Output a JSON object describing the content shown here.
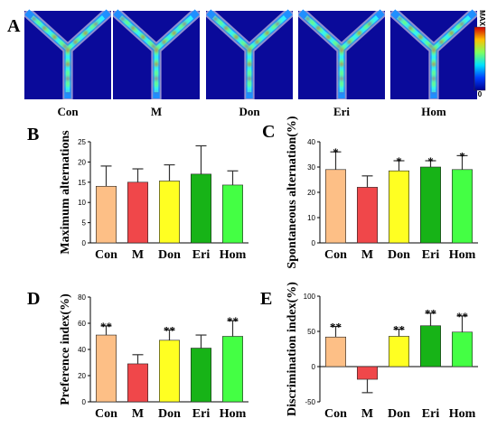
{
  "panel_labels": [
    "A",
    "B",
    "C",
    "D",
    "E"
  ],
  "heatmaps": {
    "labels": [
      "Con",
      "M",
      "Don",
      "Eri",
      "Hom"
    ],
    "colorbar_max": "MAX",
    "colorbar_min": "0"
  },
  "colors": {
    "Con": "#fdbf86",
    "M": "#f0474a",
    "Don": "#ffff22",
    "Eri": "#17b317",
    "Hom": "#44ff44",
    "heatmap_bg": "#0a0a9a"
  },
  "chart_data": [
    {
      "panel": "B",
      "type": "bar",
      "categories": [
        "Con",
        "M",
        "Don",
        "Eri",
        "Hom"
      ],
      "values": [
        14,
        15,
        15.3,
        17,
        14.3
      ],
      "errors": [
        5,
        3.3,
        4,
        7,
        3.5
      ],
      "significance": [
        "",
        "",
        "",
        "",
        ""
      ],
      "ylabel": "Maximum alternations",
      "ylim": [
        0,
        25
      ],
      "yticks": [
        0,
        5,
        10,
        15,
        20,
        25
      ]
    },
    {
      "panel": "C",
      "type": "bar",
      "categories": [
        "Con",
        "M",
        "Don",
        "Eri",
        "Hom"
      ],
      "values": [
        29,
        22,
        28.5,
        30,
        29
      ],
      "errors": [
        7,
        4.5,
        4,
        2.5,
        5.5
      ],
      "significance": [
        "*",
        "",
        "*",
        "*",
        "*"
      ],
      "ylabel": "Spontaneous alternation(%)",
      "ylim": [
        0,
        40
      ],
      "yticks": [
        0,
        10,
        20,
        30,
        40
      ]
    },
    {
      "panel": "D",
      "type": "bar",
      "categories": [
        "Con",
        "M",
        "Don",
        "Eri",
        "Hom"
      ],
      "values": [
        51,
        29,
        47,
        41,
        50
      ],
      "errors": [
        7,
        7,
        8,
        10,
        12
      ],
      "significance": [
        "**",
        "",
        "**",
        "",
        "**"
      ],
      "ylabel": "Preference index(%)",
      "ylim": [
        0,
        80
      ],
      "yticks": [
        0,
        20,
        40,
        60,
        80
      ]
    },
    {
      "panel": "E",
      "type": "bar",
      "categories": [
        "Con",
        "M",
        "Don",
        "Eri",
        "Hom"
      ],
      "values": [
        42,
        -18,
        43,
        58,
        49
      ],
      "errors": [
        15,
        19,
        10,
        18,
        23
      ],
      "significance": [
        "**",
        "",
        "**",
        "**",
        "**"
      ],
      "ylabel": "Discrimination index(%)",
      "ylim": [
        -50,
        100
      ],
      "yticks": [
        -50,
        0,
        50,
        100
      ]
    }
  ]
}
